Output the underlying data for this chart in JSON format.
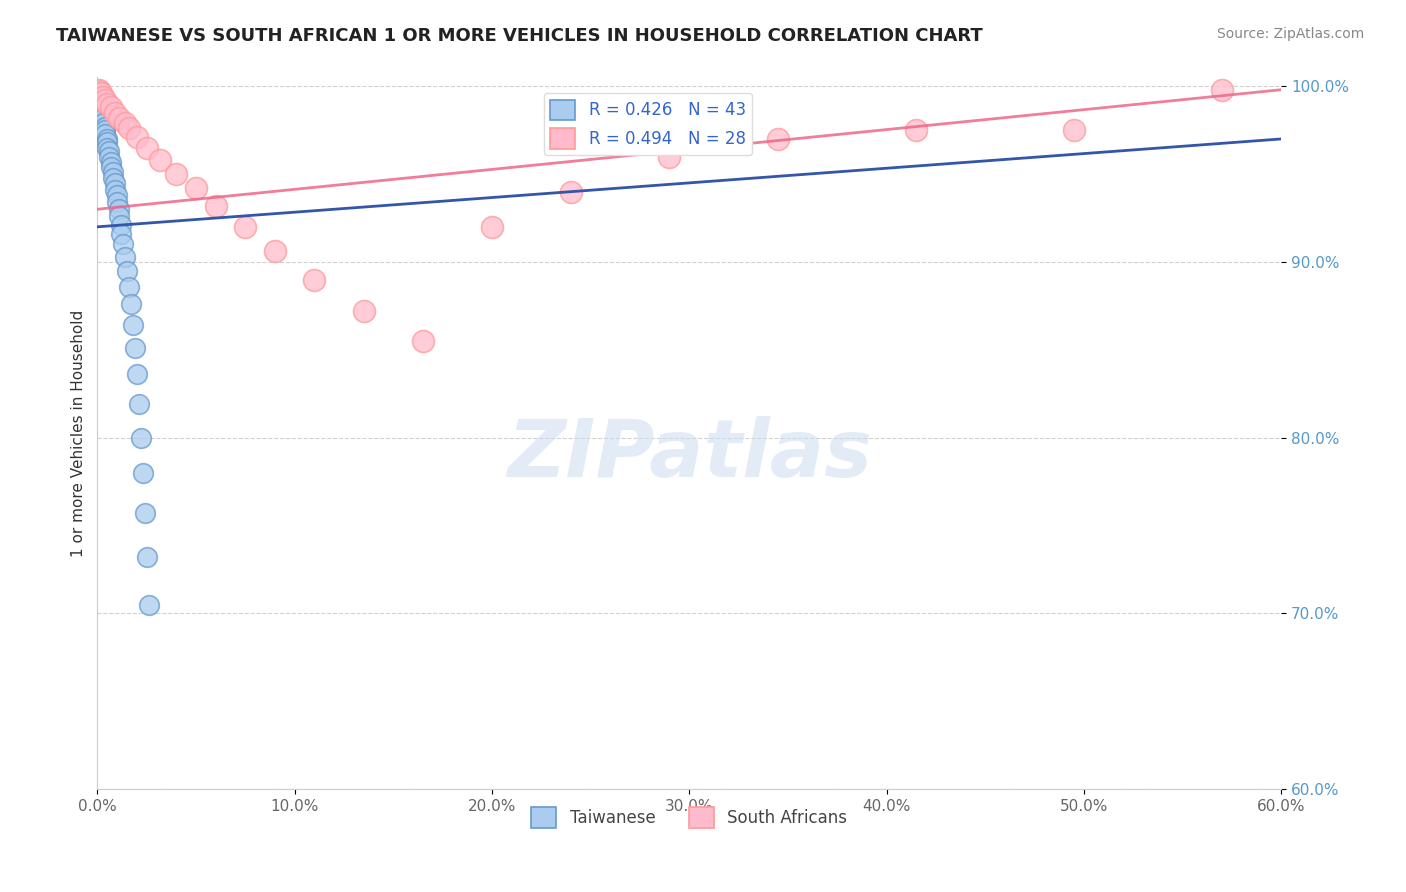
{
  "title": "TAIWANESE VS SOUTH AFRICAN 1 OR MORE VEHICLES IN HOUSEHOLD CORRELATION CHART",
  "source": "Source: ZipAtlas.com",
  "ylabel": "1 or more Vehicles in Household",
  "xlim": [
    0.0,
    0.6
  ],
  "ylim": [
    0.6,
    1.005
  ],
  "xticks": [
    0.0,
    0.1,
    0.2,
    0.3,
    0.4,
    0.5,
    0.6
  ],
  "xticklabels": [
    "0.0%",
    "10.0%",
    "20.0%",
    "30.0%",
    "40.0%",
    "50.0%",
    "60.0%"
  ],
  "yticks": [
    0.6,
    0.7,
    0.8,
    0.9,
    1.0
  ],
  "yticklabels": [
    "60.0%",
    "70.0%",
    "80.0%",
    "90.0%",
    "100.0%"
  ],
  "R_taiwanese": 0.426,
  "N_taiwanese": 43,
  "R_south_african": 0.494,
  "N_south_african": 28,
  "blue_scatter_face": "#AACCEE",
  "blue_scatter_edge": "#6699CC",
  "pink_scatter_face": "#FFBBCC",
  "pink_scatter_edge": "#FF9999",
  "blue_line_color": "#3355AA",
  "pink_line_color": "#EE6688",
  "legend_label_taiwanese": "Taiwanese",
  "legend_label_south_african": "South Africans",
  "watermark_text": "ZIPatlas",
  "background_color": "#FFFFFF",
  "grid_color": "#CCCCCC",
  "ytick_color": "#5599CC",
  "xtick_color": "#666666",
  "title_color": "#222222",
  "source_color": "#888888",
  "ylabel_color": "#333333",
  "taiwanese_x": [
    0.001,
    0.001,
    0.002,
    0.002,
    0.002,
    0.003,
    0.003,
    0.003,
    0.003,
    0.004,
    0.004,
    0.004,
    0.005,
    0.005,
    0.005,
    0.006,
    0.006,
    0.007,
    0.007,
    0.008,
    0.008,
    0.009,
    0.009,
    0.01,
    0.01,
    0.011,
    0.011,
    0.012,
    0.012,
    0.013,
    0.014,
    0.015,
    0.016,
    0.017,
    0.018,
    0.019,
    0.02,
    0.021,
    0.022,
    0.023,
    0.024,
    0.025,
    0.026
  ],
  "taiwanese_y": [
    0.998,
    0.994,
    0.992,
    0.99,
    0.988,
    0.986,
    0.984,
    0.982,
    0.979,
    0.977,
    0.975,
    0.973,
    0.97,
    0.968,
    0.965,
    0.963,
    0.96,
    0.957,
    0.954,
    0.951,
    0.948,
    0.945,
    0.941,
    0.938,
    0.934,
    0.93,
    0.926,
    0.921,
    0.916,
    0.91,
    0.903,
    0.895,
    0.886,
    0.876,
    0.864,
    0.851,
    0.836,
    0.819,
    0.8,
    0.78,
    0.757,
    0.732,
    0.705
  ],
  "south_african_x": [
    0.001,
    0.002,
    0.003,
    0.004,
    0.005,
    0.007,
    0.009,
    0.011,
    0.014,
    0.016,
    0.02,
    0.025,
    0.032,
    0.04,
    0.05,
    0.06,
    0.075,
    0.09,
    0.11,
    0.135,
    0.165,
    0.2,
    0.24,
    0.29,
    0.345,
    0.415,
    0.495,
    0.57
  ],
  "south_african_y": [
    0.998,
    0.996,
    0.994,
    0.992,
    0.99,
    0.988,
    0.985,
    0.982,
    0.979,
    0.976,
    0.971,
    0.965,
    0.958,
    0.95,
    0.942,
    0.932,
    0.92,
    0.906,
    0.89,
    0.872,
    0.855,
    0.92,
    0.94,
    0.96,
    0.97,
    0.975,
    0.975,
    0.998
  ],
  "tw_line_x": [
    0.0,
    0.6
  ],
  "tw_line_y": [
    0.92,
    0.97
  ],
  "sa_line_x": [
    0.0,
    0.6
  ],
  "sa_line_y": [
    0.93,
    0.998
  ]
}
